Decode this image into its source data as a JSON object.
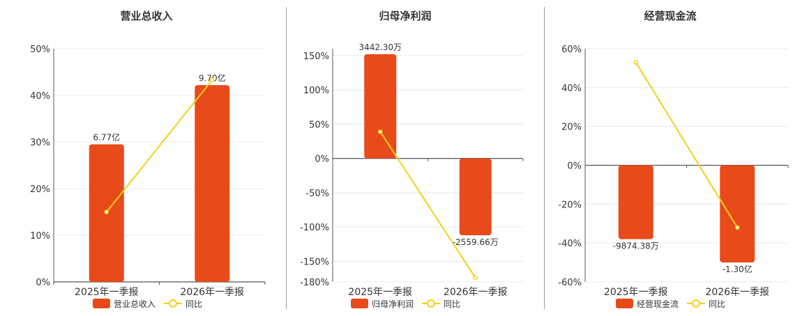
{
  "colors": {
    "bar": "#e84a1a",
    "line": "#f0d11a",
    "grid": "#e4e8f0",
    "axis": "#555555",
    "text": "#333333"
  },
  "legend_icons": {
    "bar": "rect-swatch-icon",
    "line": "line-circle-icon"
  },
  "chart_data": [
    {
      "type": "bar",
      "title": "营业总收入",
      "categories": [
        "2025年一季报",
        "2026年一季报"
      ],
      "series": [
        {
          "name": "营业总收入",
          "kind": "bar",
          "values": [
            29.5,
            42.2
          ],
          "labels": [
            "6.77亿",
            "9.70亿"
          ]
        },
        {
          "name": "同比",
          "kind": "line",
          "values": [
            15.0,
            43.3
          ]
        }
      ],
      "ylim": [
        0,
        50
      ],
      "yticks": [
        "0%",
        "10%",
        "20%",
        "30%",
        "40%",
        "50%"
      ],
      "ytick_values": [
        0,
        10,
        20,
        30,
        40,
        50
      ],
      "grid": true,
      "legend": "bottom"
    },
    {
      "type": "bar",
      "title": "归母净利润",
      "categories": [
        "2025年一季报",
        "2026年一季报"
      ],
      "series": [
        {
          "name": "归母净利润",
          "kind": "bar",
          "values": [
            152,
            -112
          ],
          "labels": [
            "3442.30万",
            "-2559.66万"
          ]
        },
        {
          "name": "同比",
          "kind": "line",
          "values": [
            39,
            -174
          ]
        }
      ],
      "ylim": [
        -180,
        160
      ],
      "yticks": [
        "-180%",
        "-150%",
        "-100%",
        "-50%",
        "0%",
        "50%",
        "100%",
        "150%"
      ],
      "ytick_values": [
        -180,
        -150,
        -100,
        -50,
        0,
        50,
        100,
        150
      ],
      "grid": true,
      "legend": "bottom"
    },
    {
      "type": "bar",
      "title": "经营现金流",
      "categories": [
        "2025年一季报",
        "2026年一季报"
      ],
      "series": [
        {
          "name": "经营现金流",
          "kind": "bar",
          "values": [
            -38,
            -50
          ],
          "labels": [
            "-9874.38万",
            "-1.30亿"
          ]
        },
        {
          "name": "同比",
          "kind": "line",
          "values": [
            53,
            -32
          ]
        }
      ],
      "ylim": [
        -60,
        60
      ],
      "yticks": [
        "-60%",
        "-40%",
        "-20%",
        "0%",
        "20%",
        "40%",
        "60%"
      ],
      "ytick_values": [
        -60,
        -40,
        -20,
        0,
        20,
        40,
        60
      ],
      "grid": true,
      "legend": "bottom"
    }
  ]
}
